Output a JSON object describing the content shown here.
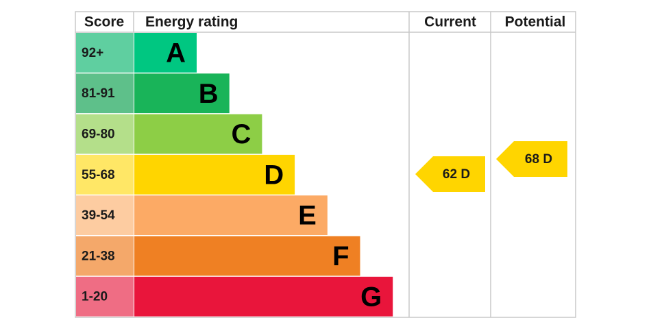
{
  "header": {
    "score": "Score",
    "rating": "Energy rating",
    "current": "Current",
    "potential": "Potential"
  },
  "bands": [
    {
      "score": "92+",
      "letter": "A",
      "color": "#00c781",
      "score_color": "#5fcfa0"
    },
    {
      "score": "81-91",
      "letter": "B",
      "color": "#19b459",
      "score_color": "#5ec08a"
    },
    {
      "score": "69-80",
      "letter": "C",
      "color": "#8dce46",
      "score_color": "#b4df8a"
    },
    {
      "score": "55-68",
      "letter": "D",
      "color": "#ffd500",
      "score_color": "#ffe766"
    },
    {
      "score": "39-54",
      "letter": "E",
      "color": "#fcaa65",
      "score_color": "#fdcca1"
    },
    {
      "score": "21-38",
      "letter": "F",
      "color": "#ef8023",
      "score_color": "#f4a86a"
    },
    {
      "score": "1-20",
      "letter": "G",
      "color": "#e9153b",
      "score_color": "#ef6d84"
    }
  ],
  "current": {
    "label": "62 D",
    "color": "#ffd500"
  },
  "potential": {
    "label": "68 D",
    "color": "#ffd500"
  }
}
